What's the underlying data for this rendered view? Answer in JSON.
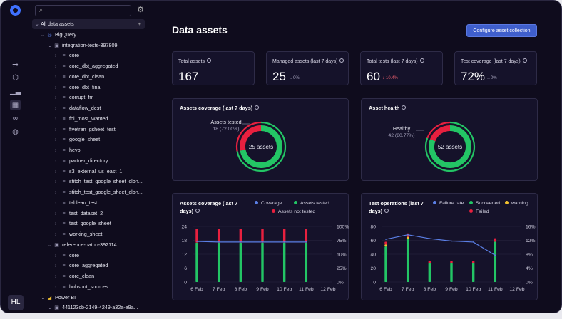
{
  "sidebar": {
    "items": [
      {
        "icon": "lineage-icon"
      },
      {
        "icon": "cube-icon"
      },
      {
        "icon": "bar-chart-icon"
      },
      {
        "icon": "grid-icon"
      },
      {
        "icon": "link-icon"
      },
      {
        "icon": "palette-icon"
      }
    ],
    "user_initials": "HL"
  },
  "tree": {
    "root_label": "All data assets",
    "bigquery": "BigQuery",
    "project1": "integration-tests-397809",
    "datasets1": [
      "core",
      "core_dbt_aggregated",
      "core_dbt_clean",
      "core_dbt_final",
      "corrupt_fm",
      "dataflow_dest",
      "fbi_most_wanted",
      "fivetran_gsheet_test",
      "google_sheet",
      "hevo",
      "partner_directory",
      "s3_external_us_east_1",
      "stitch_test_google_sheet_clon...",
      "stitch_test_google_sheet_clon...",
      "tableau_test",
      "test_dataset_2",
      "test_google_sheet",
      "working_sheet"
    ],
    "project2": "reference-baton-392114",
    "datasets2": [
      "core",
      "core_aggregated",
      "core_clean",
      "hubspot_sources"
    ],
    "powerbi": "Power BI",
    "powerbi_child": "441123cb-2149-4249-a32a-e9a..."
  },
  "page": {
    "title": "Data assets",
    "configure_button": "Configure asset collection"
  },
  "kpis": [
    {
      "label": "Total assets",
      "value": "167",
      "delta": ""
    },
    {
      "label": "Managed assets (last 7 days)",
      "value": "25",
      "delta": "→0%"
    },
    {
      "label": "Total tests (last 7 days)",
      "value": "60",
      "delta": "↓-10.4%"
    },
    {
      "label": "Test coverage (last 7 days)",
      "value": "72%",
      "delta": "→0%"
    }
  ],
  "coverage_donut": {
    "title": "Assets coverage (last 7 days)",
    "center": "25 assets",
    "callout_label": "Assets tested",
    "callout_value": "18 (72.00%)",
    "tested_fraction": 0.72
  },
  "health_donut": {
    "title": "Asset health",
    "center": "52 assets",
    "callout_label": "Healthy",
    "callout_value": "42 (80.77%)",
    "healthy_fraction": 0.8077
  },
  "colors": {
    "green": "#23c565",
    "red": "#e8203f",
    "blue": "#5b7fe6",
    "yellow": "#f2c12e"
  },
  "chart_data": [
    {
      "type": "bar",
      "title": "Assets coverage (last 7 days)",
      "categories": [
        "6 Feb",
        "7 Feb",
        "8 Feb",
        "9 Feb",
        "10 Feb",
        "11 Feb",
        "12 Feb"
      ],
      "ylim": [
        0,
        24
      ],
      "yticks": [
        "0",
        "6",
        "12",
        "18",
        "24"
      ],
      "y2ticks": [
        "0%",
        "25%",
        "50%",
        "75%",
        "100%"
      ],
      "legend": [
        "Coverage",
        "Assets tested",
        "Assets not tested"
      ],
      "series": [
        {
          "name": "Assets tested",
          "values": [
            17,
            17,
            17,
            17,
            17,
            17,
            0
          ]
        },
        {
          "name": "Assets not tested",
          "values": [
            6,
            6,
            6,
            6,
            6,
            6,
            0
          ]
        },
        {
          "name": "Coverage",
          "values": [
            73,
            72,
            72,
            72,
            72,
            72,
            null
          ]
        }
      ]
    },
    {
      "type": "bar",
      "title": "Test operations (last 7 days)",
      "categories": [
        "6 Feb",
        "7 Feb",
        "8 Feb",
        "9 Feb",
        "10 Feb",
        "11 Feb",
        "12 Feb"
      ],
      "ylim": [
        0,
        80
      ],
      "yticks": [
        "0",
        "20",
        "40",
        "60",
        "80"
      ],
      "y2ticks": [
        "0%",
        "4%",
        "8%",
        "12%",
        "16%"
      ],
      "legend": [
        "Failure rate",
        "Succeeded",
        "warning",
        "Failed"
      ],
      "series": [
        {
          "name": "Succeeded",
          "values": [
            51,
            62,
            27,
            27,
            27,
            58,
            0
          ]
        },
        {
          "name": "warning",
          "values": [
            3,
            3,
            0,
            0,
            0,
            0,
            0
          ]
        },
        {
          "name": "Failed",
          "values": [
            4,
            5,
            3,
            3,
            3,
            5,
            0
          ]
        },
        {
          "name": "Failure rate",
          "values": [
            12.3,
            13.6,
            12.5,
            11.8,
            11.5,
            7.7,
            null
          ]
        }
      ]
    }
  ]
}
